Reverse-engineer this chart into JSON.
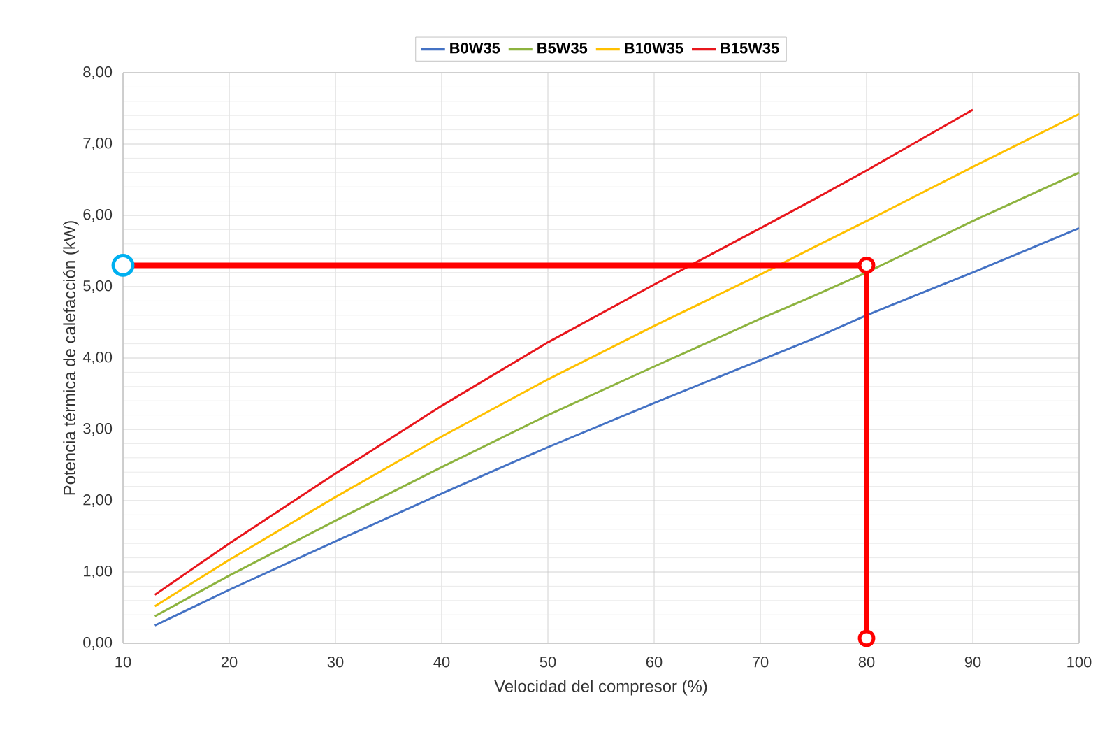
{
  "chart_data": {
    "type": "line",
    "xlabel": "Velocidad del compresor (%)",
    "ylabel": "Potencia térmica de calefacción (kW)",
    "series": [
      {
        "name": "B0W35",
        "color": "#4472c4",
        "x": [
          13,
          20,
          30,
          40,
          50,
          60,
          70,
          75,
          80,
          90,
          100
        ],
        "values": [
          0.25,
          0.75,
          1.43,
          2.1,
          2.75,
          3.37,
          3.97,
          4.27,
          4.6,
          5.2,
          5.82
        ]
      },
      {
        "name": "B5W35",
        "color": "#8db33f",
        "x": [
          13,
          20,
          30,
          40,
          50,
          60,
          70,
          75,
          80,
          90,
          100
        ],
        "values": [
          0.38,
          0.95,
          1.72,
          2.47,
          3.2,
          3.88,
          4.55,
          4.87,
          5.2,
          5.92,
          6.6
        ]
      },
      {
        "name": "B10W35",
        "color": "#ffc000",
        "x": [
          13,
          20,
          30,
          40,
          50,
          60,
          70,
          75,
          80,
          90,
          100
        ],
        "values": [
          0.52,
          1.17,
          2.05,
          2.9,
          3.7,
          4.45,
          5.17,
          5.55,
          5.92,
          6.68,
          7.42
        ]
      },
      {
        "name": "B15W35",
        "color": "#e8161c",
        "x": [
          13,
          20,
          30,
          40,
          50,
          60,
          70,
          75,
          80,
          90
        ],
        "values": [
          0.68,
          1.4,
          2.38,
          3.33,
          4.22,
          5.03,
          5.82,
          6.22,
          6.63,
          7.48
        ]
      },
      {
        "type": "line",
        "color": "#ff0000",
        "x": [
          10.0,
          80.0,
          80.0
        ],
        "values": [
          5.3,
          5.3,
          0.07
        ]
      },
      {
        "type": "scatter",
        "color": "#00b0f0",
        "marker": "circle",
        "x": [
          10.0
        ],
        "values": [
          5.3
        ]
      },
      {
        "type": "scatter",
        "color": "#ff0000",
        "marker": "circle",
        "x": [
          80.0,
          80.0
        ],
        "values": [
          5.3,
          0.07
        ]
      }
    ],
    "xlim": [
      10,
      100
    ],
    "xticks": [
      10,
      20,
      30,
      40,
      50,
      60,
      70,
      80,
      90,
      100
    ],
    "ylim": [
      0,
      8
    ],
    "yticks": [
      {
        "value": 0,
        "label": "0,00"
      },
      {
        "value": 1,
        "label": "1,00"
      },
      {
        "value": 2,
        "label": "2,00"
      },
      {
        "value": 3,
        "label": "3,00"
      },
      {
        "value": 4,
        "label": "4,00"
      },
      {
        "value": 5,
        "label": "5,00"
      },
      {
        "value": 6,
        "label": "6,00"
      },
      {
        "value": 7,
        "label": "7,00"
      },
      {
        "value": 8,
        "label": "8,00"
      }
    ],
    "grid": true,
    "legend": "top",
    "marker": "none",
    "line_style": "solid"
  }
}
